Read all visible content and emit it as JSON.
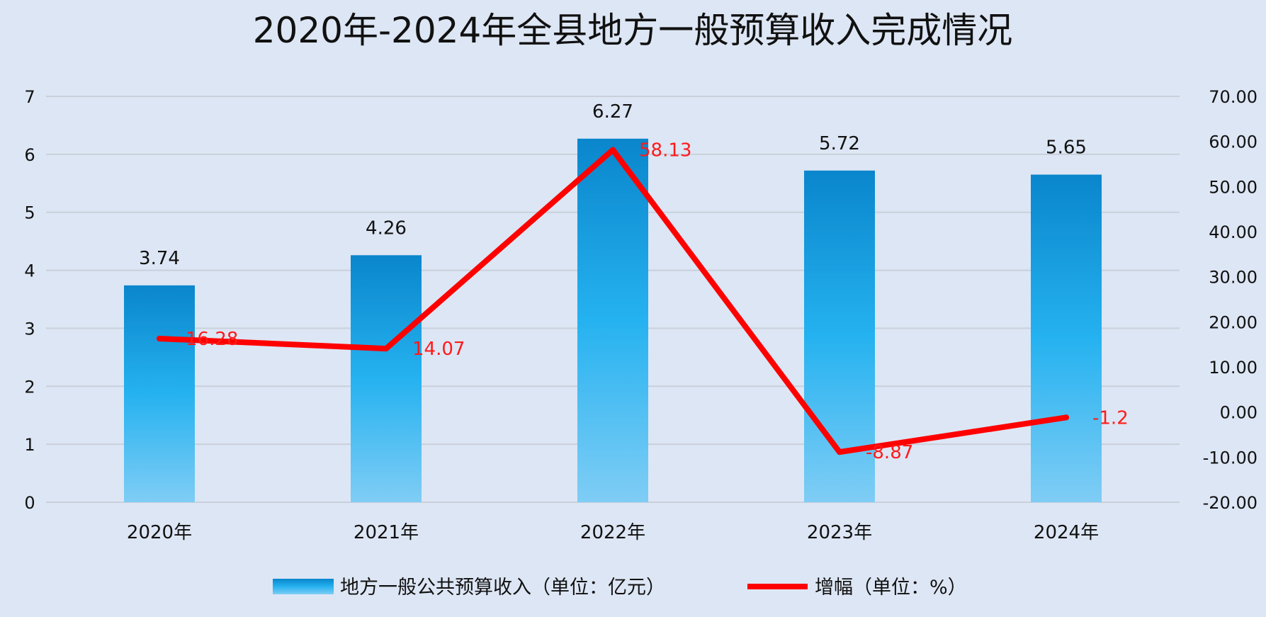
{
  "chart_data": {
    "type": "bar",
    "title": "2020年-2024年全县地方一般预算收入完成情况",
    "categories": [
      "2020年",
      "2021年",
      "2022年",
      "2023年",
      "2024年"
    ],
    "series": [
      {
        "name": "地方一般公共预算收入（单位：亿元）",
        "type": "bar",
        "axis": "left",
        "values": [
          3.74,
          4.26,
          6.27,
          5.72,
          5.65
        ],
        "labels": [
          "3.74",
          "4.26",
          "6.27",
          "5.72",
          "5.65"
        ],
        "color_top": "#0a86cc",
        "color_mid": "#25b2f0",
        "color_bottom": "#7fcdf5"
      },
      {
        "name": "增幅（单位：%）",
        "type": "line",
        "axis": "right",
        "values": [
          16.28,
          14.07,
          58.13,
          -8.87,
          -1.2
        ],
        "labels": [
          "16.28",
          "14.07",
          "58.13",
          "-8.87",
          "-1.2"
        ],
        "color": "#ff0000"
      }
    ],
    "y_left": {
      "min": 0,
      "max": 7,
      "ticks": [
        "0",
        "1",
        "2",
        "3",
        "4",
        "5",
        "6",
        "7"
      ]
    },
    "y_right": {
      "min": -20,
      "max": 70,
      "ticks": [
        "-20.00",
        "-10.00",
        "0.00",
        "10.00",
        "20.00",
        "30.00",
        "40.00",
        "50.00",
        "60.00",
        "70.00"
      ]
    },
    "grid": true,
    "legend": "bottom",
    "gridColor": "#c9d0db",
    "background": "#dde6f4"
  }
}
